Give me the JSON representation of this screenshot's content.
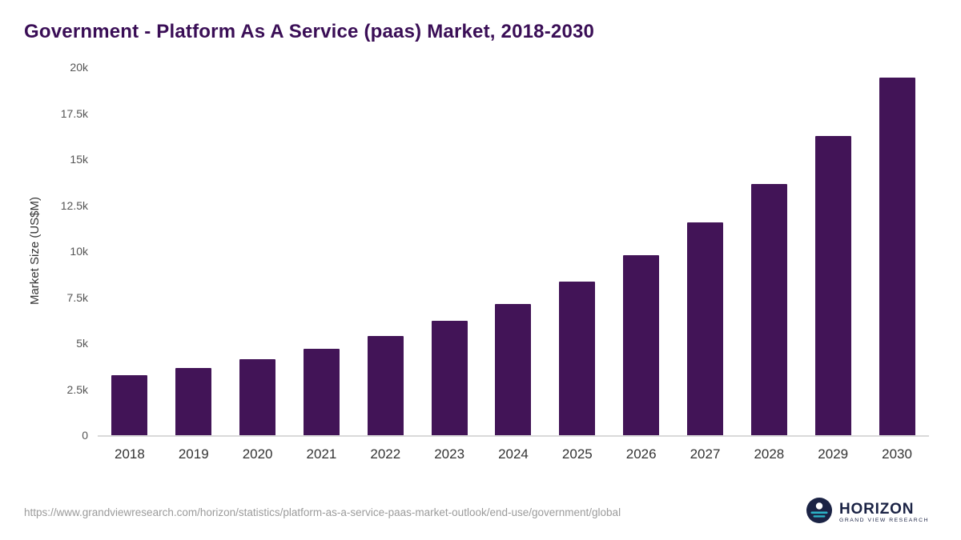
{
  "title": "Government - Platform As A Service (paas) Market, 2018-2030",
  "chart_data": {
    "type": "bar",
    "title": "Government - Platform As A Service (paas) Market, 2018-2030",
    "categories": [
      "2018",
      "2019",
      "2020",
      "2021",
      "2022",
      "2023",
      "2024",
      "2025",
      "2026",
      "2027",
      "2028",
      "2029",
      "2030"
    ],
    "values": [
      3250,
      3650,
      4150,
      4700,
      5400,
      6200,
      7150,
      8350,
      9800,
      11550,
      13650,
      16250,
      19450
    ],
    "xlabel": "",
    "ylabel": "Market Size (US$M)",
    "ylim": [
      0,
      20000
    ],
    "yticks": [
      {
        "value": 0,
        "label": "0"
      },
      {
        "value": 2500,
        "label": "2.5k"
      },
      {
        "value": 5000,
        "label": "5k"
      },
      {
        "value": 7500,
        "label": "7.5k"
      },
      {
        "value": 10000,
        "label": "10k"
      },
      {
        "value": 12500,
        "label": "12.5k"
      },
      {
        "value": 15000,
        "label": "15k"
      },
      {
        "value": 17500,
        "label": "17.5k"
      },
      {
        "value": 20000,
        "label": "20k"
      }
    ],
    "grid": false,
    "legend": false,
    "bar_color": "#421457"
  },
  "footer": {
    "source_url": "https://www.grandviewresearch.com/horizon/statistics/platform-as-a-service-paas-market-outlook/end-use/government/global",
    "logo_text": "HORIZON",
    "logo_subtext": "GRAND VIEW RESEARCH"
  },
  "colors": {
    "title": "#3a0e56",
    "bar": "#421457",
    "axis_text": "#555555",
    "logo_navy": "#1b2345",
    "logo_teal": "#2cb3c7"
  }
}
